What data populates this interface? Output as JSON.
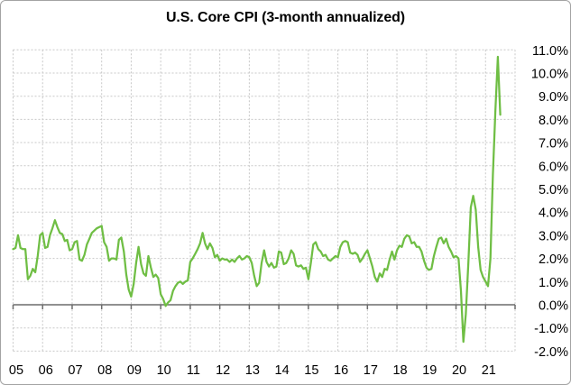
{
  "chart_data": {
    "type": "line",
    "title": "U.S. Core CPI (3-month annualized)",
    "x_start": "2005-01",
    "x_end": "2021-07",
    "frequency": "monthly",
    "x_tick_labels": [
      "05",
      "06",
      "07",
      "08",
      "09",
      "10",
      "11",
      "12",
      "13",
      "14",
      "15",
      "16",
      "17",
      "18",
      "19",
      "20",
      "21"
    ],
    "y_tick_labels": [
      "11.0%",
      "10.0%",
      "9.0%",
      "8.0%",
      "7.0%",
      "6.0%",
      "5.0%",
      "4.0%",
      "3.0%",
      "2.0%",
      "1.0%",
      "0.0%",
      "-1.0%",
      "-2.0%"
    ],
    "ylim": [
      -2,
      11
    ],
    "y_tick_step": 1,
    "x_axis_span_years": [
      2005,
      2022
    ],
    "grid": true,
    "gridline_style": "dashed",
    "zero_axis": true,
    "legend_position": "none",
    "y_axis_side": "right",
    "series": [
      {
        "name": "U.S. Core CPI (3-month annualized)",
        "color": "#6fbe44",
        "values_pct": [
          2.4,
          2.45,
          3.0,
          2.45,
          2.4,
          2.4,
          1.1,
          1.25,
          1.55,
          1.4,
          2.1,
          3.0,
          3.1,
          2.45,
          2.5,
          3.0,
          3.3,
          3.65,
          3.35,
          3.1,
          3.05,
          2.75,
          2.8,
          2.35,
          2.4,
          2.7,
          2.75,
          1.95,
          1.9,
          2.15,
          2.6,
          2.85,
          3.1,
          3.2,
          3.3,
          3.35,
          3.4,
          2.7,
          2.5,
          1.9,
          2.0,
          2.0,
          1.95,
          2.8,
          2.9,
          2.3,
          1.3,
          0.65,
          0.35,
          0.9,
          1.8,
          2.5,
          1.75,
          1.35,
          1.25,
          2.1,
          1.6,
          1.2,
          1.3,
          1.15,
          0.45,
          0.25,
          -0.05,
          0.1,
          0.2,
          0.6,
          0.8,
          0.95,
          1.0,
          0.9,
          1.0,
          1.05,
          1.85,
          2.0,
          2.2,
          2.4,
          2.65,
          3.1,
          2.65,
          2.4,
          2.65,
          2.45,
          2.05,
          2.15,
          1.9,
          2.0,
          1.95,
          1.95,
          1.85,
          1.95,
          1.85,
          2.0,
          2.1,
          1.95,
          2.0,
          2.1,
          2.05,
          1.8,
          1.25,
          0.8,
          0.95,
          1.8,
          2.35,
          1.85,
          1.65,
          1.8,
          1.6,
          1.65,
          2.3,
          2.25,
          1.75,
          1.8,
          2.0,
          2.35,
          2.2,
          1.7,
          1.65,
          1.7,
          1.55,
          1.6,
          1.1,
          1.8,
          2.6,
          2.7,
          2.4,
          2.3,
          2.1,
          2.15,
          1.95,
          1.9,
          2.0,
          2.1,
          2.05,
          2.5,
          2.7,
          2.75,
          2.7,
          2.25,
          2.2,
          2.25,
          2.15,
          1.85,
          2.0,
          2.2,
          2.35,
          2.0,
          1.65,
          1.2,
          1.0,
          1.35,
          1.2,
          1.55,
          1.5,
          1.95,
          2.3,
          1.95,
          2.35,
          2.55,
          2.5,
          2.85,
          3.0,
          2.95,
          2.65,
          2.7,
          2.5,
          2.5,
          2.3,
          1.9,
          1.6,
          1.5,
          1.55,
          2.1,
          2.5,
          2.85,
          2.9,
          2.65,
          2.85,
          2.5,
          2.3,
          2.05,
          2.1,
          2.0,
          0.6,
          -1.6,
          -0.4,
          1.8,
          4.2,
          4.7,
          4.1,
          2.5,
          1.5,
          1.2,
          1.0,
          0.8,
          2.0,
          5.6,
          8.4,
          10.7,
          8.2
        ]
      }
    ]
  },
  "colors": {
    "line": "#6fbe44",
    "gridline": "#c8c8c8",
    "zero_axis": "#6b6b6b",
    "text": "#000000",
    "frame_border": "#a3a3a3",
    "background": "#ffffff"
  }
}
